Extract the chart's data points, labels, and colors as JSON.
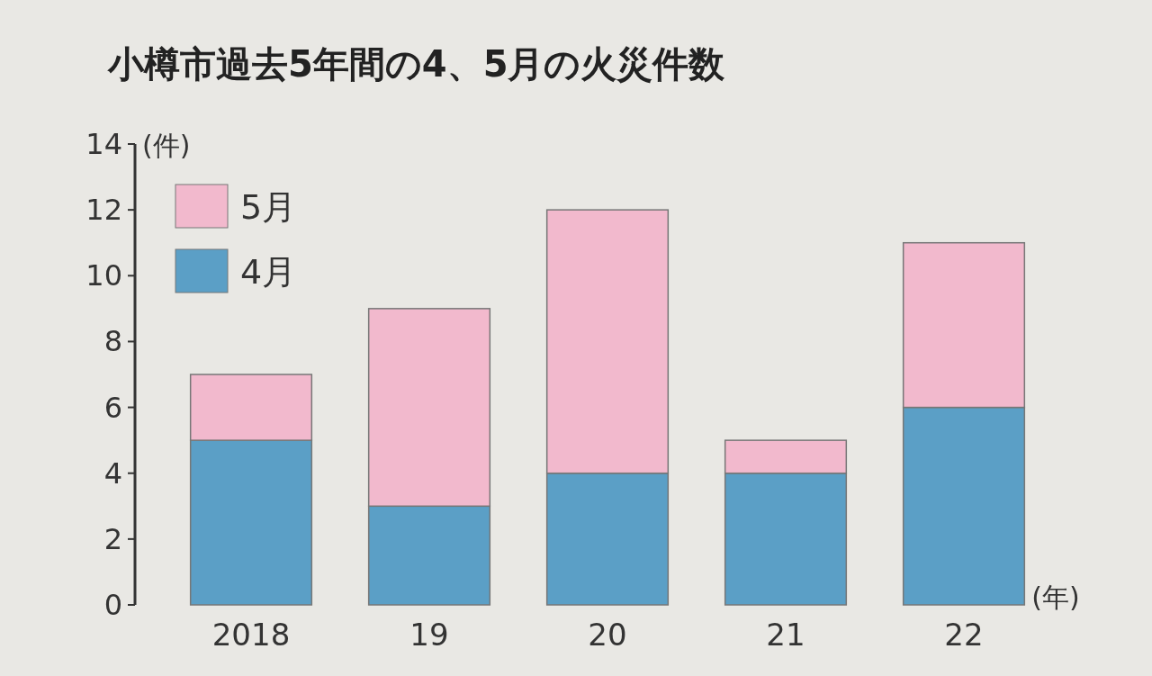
{
  "chart_data": {
    "type": "bar",
    "title": "小樽市過去5年間の4、5月の火災件数",
    "categories": [
      "2018",
      "19",
      "20",
      "21",
      "22"
    ],
    "series": [
      {
        "name": "4月",
        "color": "#5b9fc6",
        "values": [
          5,
          3,
          4,
          4,
          6
        ]
      },
      {
        "name": "5月",
        "color": "#f2b9cd",
        "values": [
          2,
          6,
          8,
          1,
          5
        ]
      }
    ],
    "stacked": true,
    "ylim": [
      0,
      14
    ],
    "yticks": [
      0,
      2,
      4,
      6,
      8,
      10,
      12,
      14
    ],
    "xlabel": "(年)",
    "ylabel": "(件)",
    "legend": "top left",
    "grid": false
  }
}
